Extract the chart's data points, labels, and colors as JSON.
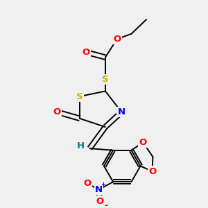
{
  "bg_color": "#f0f0f0",
  "atom_colors": {
    "S": "#c8b400",
    "O": "#ff0000",
    "N": "#0000ff",
    "H": "#008080",
    "C": "#000000"
  },
  "figsize": [
    3.0,
    3.0
  ],
  "dpi": 100,
  "lw": 1.4,
  "fs": 9.5
}
